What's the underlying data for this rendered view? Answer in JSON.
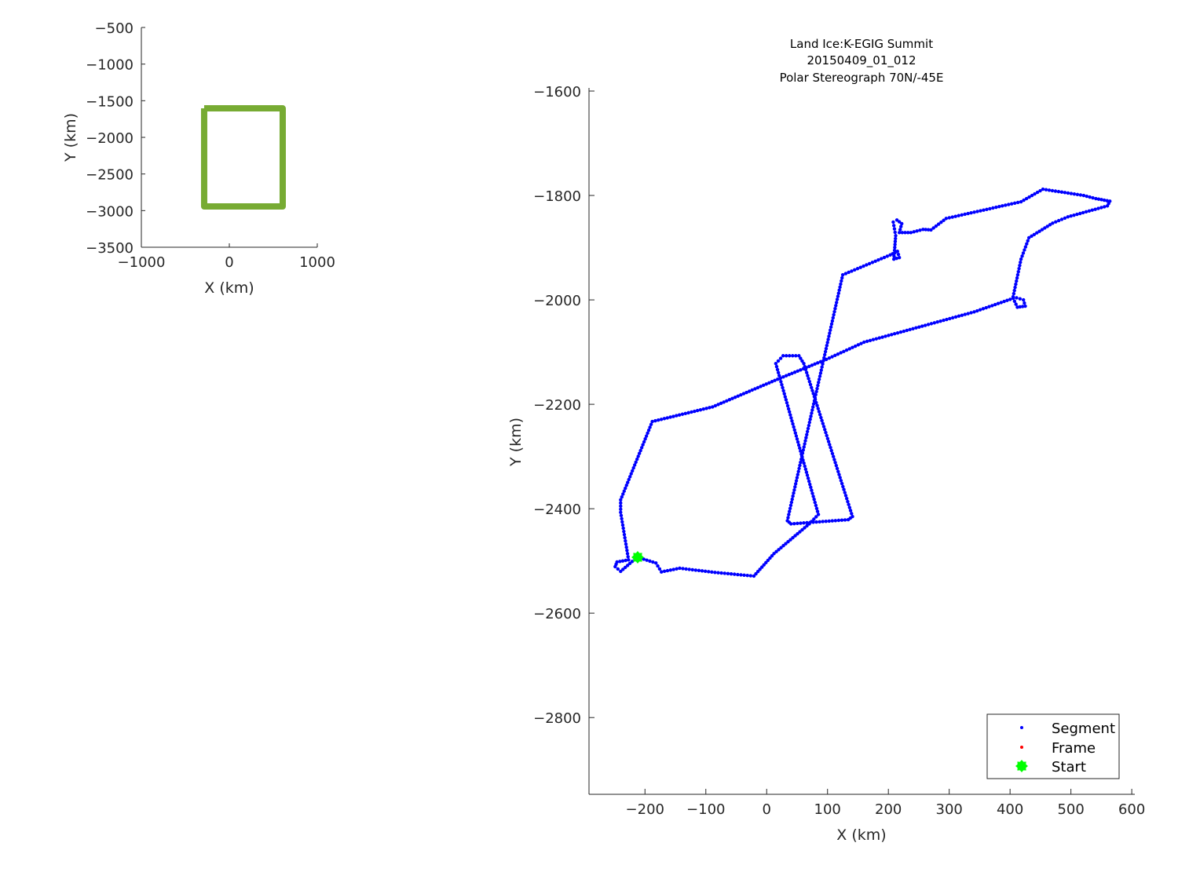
{
  "chart_data": [
    {
      "type": "line",
      "xlabel": "X (km)",
      "ylabel": "Y (km)",
      "xlim": [
        -1000,
        1000
      ],
      "ylim": [
        -3500,
        -500
      ],
      "xticks": [
        "-1000",
        "0",
        "1000"
      ],
      "yticks": [
        "-500",
        "-1000",
        "-1500",
        "-2000",
        "-2500",
        "-3000",
        "-3500"
      ],
      "grid": false,
      "outline_color": "#77ab33",
      "outline": [
        [
          -286,
          -1604
        ],
        [
          607,
          -1604
        ],
        [
          607,
          -2943
        ],
        [
          -286,
          -2943
        ],
        [
          -286,
          -1604
        ]
      ]
    },
    {
      "type": "scatter",
      "title": [
        "Land Ice:K-EGIG Summit",
        "20150409_01_012",
        "Polar Stereograph 70N/-45E"
      ],
      "xlabel": "X (km)",
      "ylabel": "Y (km)",
      "xlim": [
        -292,
        605
      ],
      "ylim": [
        -2947,
        -1600
      ],
      "xticks": [
        "-200",
        "-100",
        "0",
        "100",
        "200",
        "300",
        "400",
        "500",
        "600"
      ],
      "yticks": [
        "-1600",
        "-1800",
        "-2000",
        "-2200",
        "-2400",
        "-2600",
        "-2800"
      ],
      "grid": false,
      "legend_position": "bottom-right",
      "legend": [
        {
          "label": "Segment",
          "color": "#0000ff",
          "marker": "dot"
        },
        {
          "label": "Frame",
          "color": "#ff0000",
          "marker": "dot"
        },
        {
          "label": "Start",
          "color": "#00ff00",
          "marker": "star"
        }
      ],
      "segment_color": "#0000ff",
      "start_color": "#00ff00",
      "start": [
        -212,
        -2493
      ],
      "segment_track": [
        [
          -212,
          -2493
        ],
        [
          -182,
          -2504
        ],
        [
          -173,
          -2521
        ],
        [
          -143,
          -2514
        ],
        [
          -85,
          -2522
        ],
        [
          -21,
          -2529
        ],
        [
          12,
          -2486
        ],
        [
          70,
          -2429
        ],
        [
          85,
          -2411
        ],
        [
          15,
          -2122
        ],
        [
          27,
          -2107
        ],
        [
          53,
          -2107
        ],
        [
          61,
          -2122
        ],
        [
          141,
          -2415
        ],
        [
          134,
          -2421
        ],
        [
          40,
          -2429
        ],
        [
          34,
          -2423
        ],
        [
          125,
          -1952
        ],
        [
          203,
          -1914
        ],
        [
          215,
          -1907
        ],
        [
          218,
          -1919
        ],
        [
          209,
          -1922
        ],
        [
          212,
          -1877
        ],
        [
          208,
          -1851
        ],
        [
          214,
          -1847
        ],
        [
          222,
          -1854
        ],
        [
          218,
          -1871
        ],
        [
          237,
          -1871
        ],
        [
          257,
          -1865
        ],
        [
          270,
          -1866
        ],
        [
          295,
          -1844
        ],
        [
          418,
          -1812
        ],
        [
          454,
          -1788
        ],
        [
          521,
          -1800
        ],
        [
          541,
          -1806
        ],
        [
          564,
          -1811
        ],
        [
          560,
          -1820
        ],
        [
          495,
          -1841
        ],
        [
          470,
          -1853
        ],
        [
          431,
          -1881
        ],
        [
          418,
          -1922
        ],
        [
          405,
          -1994
        ],
        [
          422,
          -2000
        ],
        [
          425,
          -2012
        ],
        [
          412,
          -2014
        ],
        [
          405,
          -1997
        ],
        [
          341,
          -2023
        ],
        [
          160,
          -2081
        ],
        [
          98,
          -2114
        ],
        [
          18,
          -2152
        ],
        [
          -89,
          -2205
        ],
        [
          -188,
          -2233
        ],
        [
          -240,
          -2383
        ],
        [
          -240,
          -2407
        ],
        [
          -227,
          -2498
        ],
        [
          -246,
          -2502
        ],
        [
          -249,
          -2511
        ],
        [
          -240,
          -2520
        ],
        [
          -221,
          -2501
        ],
        [
          -212,
          -2493
        ]
      ]
    }
  ]
}
